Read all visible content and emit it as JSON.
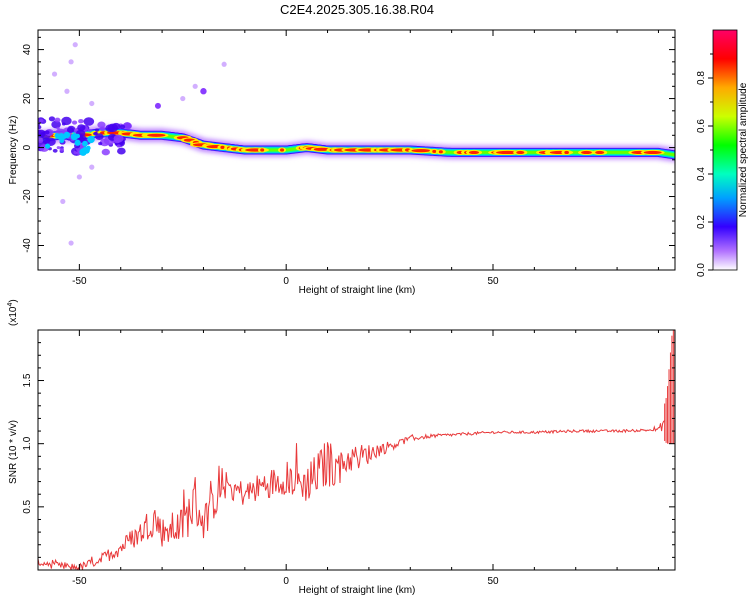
{
  "title": "C2E4.2025.305.16.38.R04",
  "chart_data": [
    {
      "type": "heatmap",
      "xlabel": "Height of straight line (km)",
      "ylabel": "Frequency (Hz)",
      "xlim": [
        -60,
        94
      ],
      "ylim": [
        -50,
        48
      ],
      "x_ticks": [
        -50,
        0,
        50
      ],
      "y_ticks": [
        -40,
        -20,
        0,
        20,
        40
      ],
      "colorbar": {
        "label": "Normalized spectral amplitude",
        "range": [
          0,
          1
        ],
        "ticks": [
          "0.0",
          "0.2",
          "0.4",
          "0.6",
          "0.8"
        ],
        "colormap": [
          "#ffffff",
          "#9900ff",
          "#0000ff",
          "#00ffff",
          "#00ff00",
          "#ffff00",
          "#ff8800",
          "#ff0000",
          "#ff0066"
        ]
      },
      "ridge": {
        "x": [
          -60,
          -55,
          -50,
          -45,
          -40,
          -35,
          -30,
          -25,
          -20,
          -15,
          -10,
          -5,
          0,
          5,
          10,
          15,
          20,
          30,
          40,
          50,
          60,
          70,
          80,
          90,
          94
        ],
        "frequency_hz": [
          4,
          5,
          5,
          6,
          6,
          5,
          5,
          4,
          1,
          0,
          -1,
          -1,
          -1,
          0,
          -1,
          -1,
          -1,
          -1,
          -2,
          -2,
          -2,
          -2,
          -2,
          -2,
          -3
        ]
      },
      "scattered_points": [
        {
          "x": -31,
          "y": 17
        },
        {
          "x": -20,
          "y": 23
        },
        {
          "x": -25,
          "y": 20
        },
        {
          "x": -52,
          "y": 35
        },
        {
          "x": -51,
          "y": 42
        },
        {
          "x": -47,
          "y": 18
        },
        {
          "x": -53,
          "y": 23
        },
        {
          "x": -54,
          "y": -22
        },
        {
          "x": -52,
          "y": -39
        },
        {
          "x": -50,
          "y": -12
        },
        {
          "x": -47,
          "y": -8
        },
        {
          "x": -56,
          "y": 30
        },
        {
          "x": -15,
          "y": 34
        },
        {
          "x": -22,
          "y": 25
        }
      ]
    },
    {
      "type": "line",
      "xlabel": "Height of straight line (km)",
      "ylabel": "SNR (10 * v/v)",
      "y_multiplier": "(x10",
      "y_multiplier_exp": "4",
      "y_multiplier_close": ")",
      "xlim": [
        -60,
        94
      ],
      "ylim": [
        0,
        1.9
      ],
      "x_ticks": [
        -50,
        0,
        50
      ],
      "y_ticks": [
        "0.5",
        "1.0",
        "1.5"
      ],
      "series": [
        {
          "color": "#e8393a",
          "x": [
            -60,
            -55,
            -50,
            -45,
            -40,
            -35,
            -32,
            -30,
            -25,
            -22,
            -20,
            -15,
            -10,
            -5,
            0,
            5,
            8,
            10,
            12,
            15,
            18,
            20,
            22,
            25,
            30,
            35,
            40,
            50,
            60,
            70,
            80,
            90,
            92,
            93,
            94
          ],
          "y": [
            0.06,
            0.03,
            0.02,
            0.08,
            0.18,
            0.3,
            0.42,
            0.3,
            0.35,
            0.55,
            0.38,
            0.68,
            0.6,
            0.68,
            0.72,
            0.68,
            0.78,
            0.85,
            0.8,
            0.88,
            0.9,
            0.92,
            0.95,
            0.98,
            1.04,
            1.06,
            1.07,
            1.09,
            1.09,
            1.1,
            1.1,
            1.11,
            1.2,
            1.4,
            1.6
          ],
          "noise_amplitude": [
            0.03,
            0.03,
            0.03,
            0.04,
            0.07,
            0.1,
            0.15,
            0.12,
            0.15,
            0.22,
            0.15,
            0.12,
            0.1,
            0.12,
            0.12,
            0.15,
            0.18,
            0.2,
            0.15,
            0.12,
            0.1,
            0.08,
            0.06,
            0.04,
            0.02,
            0.015,
            0.012,
            0.01,
            0.01,
            0.01,
            0.01,
            0.012,
            0.1,
            0.2,
            0.3
          ]
        }
      ]
    }
  ]
}
